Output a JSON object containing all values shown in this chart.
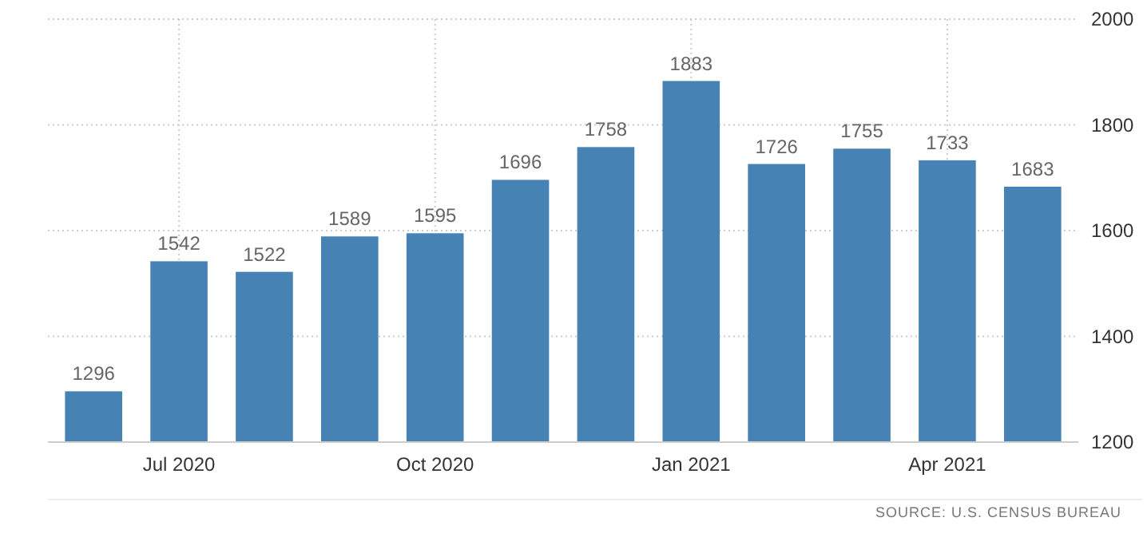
{
  "chart_data": {
    "type": "bar",
    "categories": [
      null,
      "Jul 2020",
      null,
      null,
      "Oct 2020",
      null,
      null,
      "Jan 2021",
      null,
      null,
      "Apr 2021",
      null
    ],
    "values": [
      1296,
      1542,
      1522,
      1589,
      1595,
      1696,
      1758,
      1883,
      1726,
      1755,
      1733,
      1683
    ],
    "color": "#4682b4",
    "ylim": [
      1200,
      2000
    ],
    "yticks": [
      1200,
      1400,
      1600,
      1800,
      2000
    ],
    "grid": true,
    "data_labels": true,
    "annotations": [
      "SOURCE: U.S. CENSUS BUREAU"
    ]
  }
}
